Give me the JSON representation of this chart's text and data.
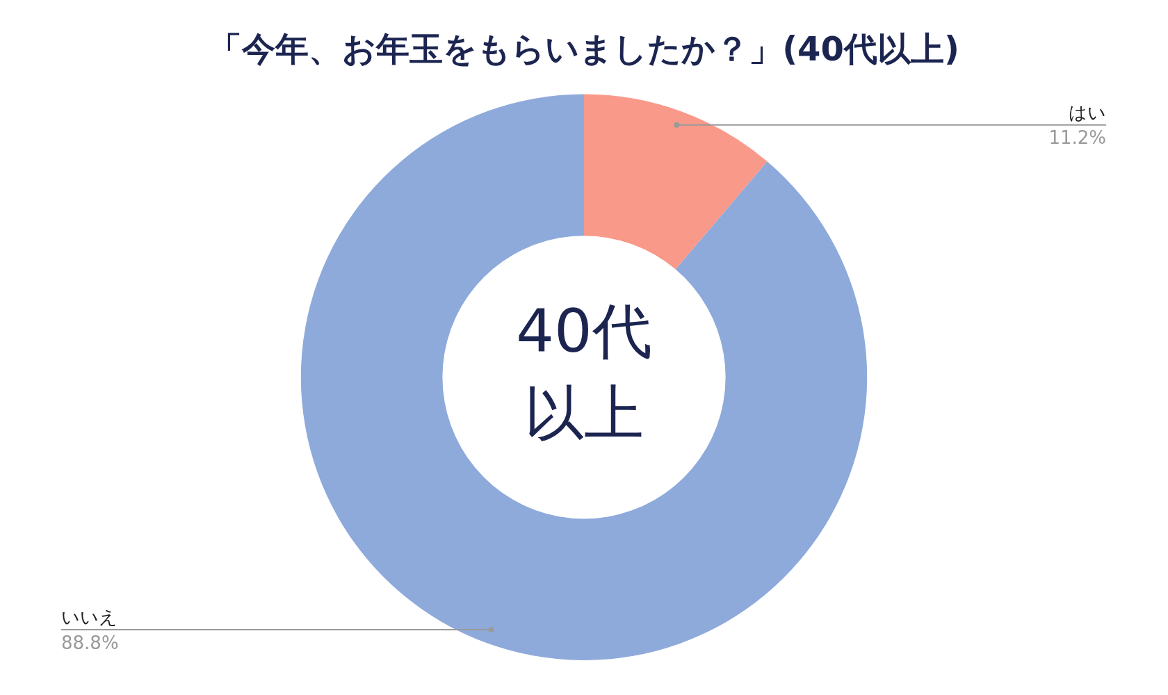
{
  "chart_data": {
    "type": "donut",
    "title": "「今年、お年玉をもらいましたか？」(40代以上)",
    "categories": [
      "はい",
      "いいえ"
    ],
    "values": [
      11.2,
      88.8
    ],
    "value_labels": [
      "11.2%",
      "88.8%"
    ],
    "colors": [
      "#f9998a",
      "#8eaadb"
    ],
    "annotations": [
      "40代",
      "以上"
    ],
    "legend": false
  }
}
